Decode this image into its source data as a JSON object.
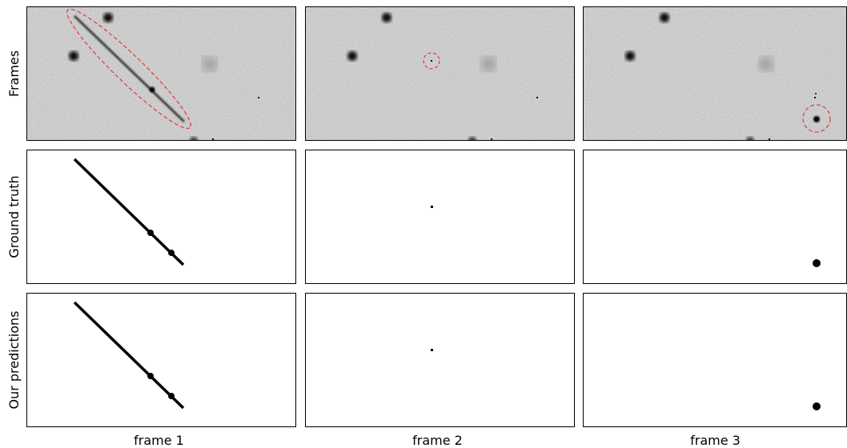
{
  "rows": [
    {
      "label": "Frames"
    },
    {
      "label": "Ground truth"
    },
    {
      "label": "Our predictions"
    }
  ],
  "columns": [
    {
      "label": "frame 1"
    },
    {
      "label": "frame 2"
    },
    {
      "label": "frame 3"
    }
  ]
}
